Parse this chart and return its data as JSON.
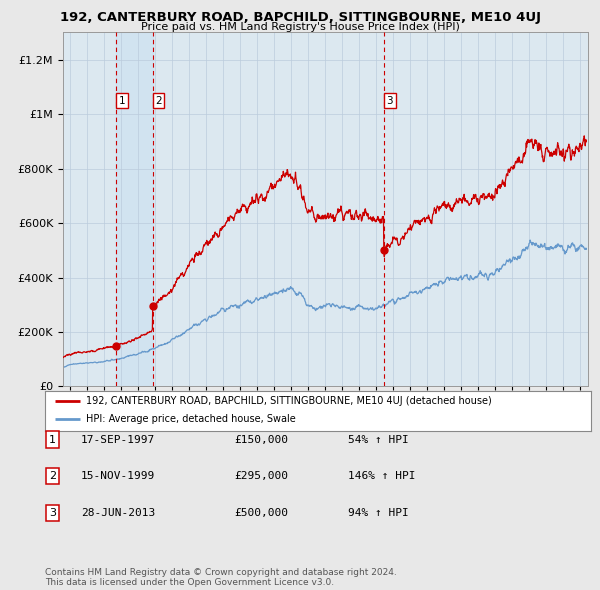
{
  "title": "192, CANTERBURY ROAD, BAPCHILD, SITTINGBOURNE, ME10 4UJ",
  "subtitle": "Price paid vs. HM Land Registry's House Price Index (HPI)",
  "legend_red": "192, CANTERBURY ROAD, BAPCHILD, SITTINGBOURNE, ME10 4UJ (detached house)",
  "legend_blue": "HPI: Average price, detached house, Swale",
  "sale_dates": [
    "17-SEP-1997",
    "15-NOV-1999",
    "28-JUN-2013"
  ],
  "sale_prices": [
    150000,
    295000,
    500000
  ],
  "sale_hpi_pct": [
    "54% ↑ HPI",
    "146% ↑ HPI",
    "94% ↑ HPI"
  ],
  "footer1": "Contains HM Land Registry data © Crown copyright and database right 2024.",
  "footer2": "This data is licensed under the Open Government Licence v3.0.",
  "ylim": [
    0,
    1300000
  ],
  "yticks": [
    0,
    200000,
    400000,
    600000,
    800000,
    1000000,
    1200000
  ],
  "xlim_start": 1994.6,
  "xlim_end": 2025.5,
  "red_color": "#cc0000",
  "blue_color": "#6699cc",
  "background_color": "#e8e8e8",
  "plot_bg_color": "#dce8f0",
  "grid_color": "#bbccdd",
  "vline_color": "#cc0000",
  "sale_years_decimal": [
    1997.72,
    1999.88,
    2013.49
  ]
}
